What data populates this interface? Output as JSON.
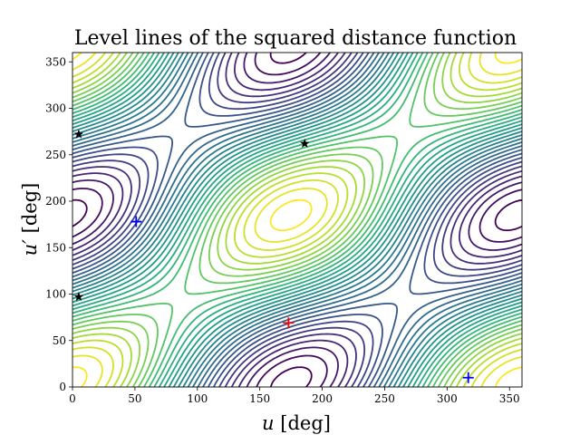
{
  "chart_data": {
    "type": "contour",
    "title": "Level lines of the squared distance function",
    "xlabel_var": "u",
    "xlabel_unit": "[deg]",
    "ylabel_var": "u′",
    "ylabel_unit": "[deg]",
    "xlim": [
      0,
      360
    ],
    "ylim": [
      0,
      360
    ],
    "xticks": [
      0,
      50,
      100,
      150,
      200,
      250,
      300,
      350
    ],
    "yticks": [
      0,
      50,
      100,
      150,
      200,
      250,
      300,
      350
    ],
    "colormap": "viridis",
    "level_count": 30,
    "grid": false,
    "markers": [
      {
        "kind": "max",
        "symbol": "+",
        "color": "#ff0000",
        "u": 173,
        "up": 69
      },
      {
        "kind": "min",
        "symbol": "+",
        "color": "#0000ff",
        "u": 51,
        "up": 178
      },
      {
        "kind": "min",
        "symbol": "+",
        "color": "#0000ff",
        "u": 317,
        "up": 10
      },
      {
        "kind": "saddle",
        "symbol": "star",
        "color": "#000000",
        "u": 186,
        "up": 262
      },
      {
        "kind": "saddle",
        "symbol": "star",
        "color": "#000000",
        "u": 5,
        "up": 272
      },
      {
        "kind": "saddle",
        "symbol": "star",
        "color": "#000000",
        "u": 5,
        "up": 97
      }
    ]
  }
}
